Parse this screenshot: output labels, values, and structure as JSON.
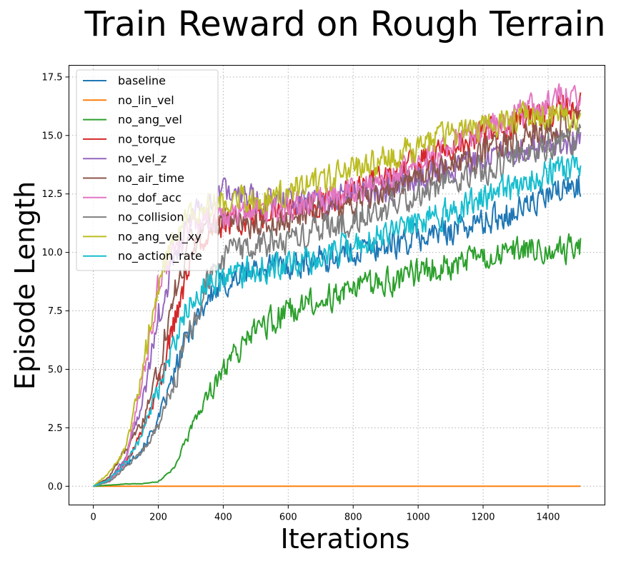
{
  "chart_data": {
    "type": "line",
    "title": "Train Reward on Rough Terrain",
    "xlabel": "Iterations",
    "ylabel": "Episode Length",
    "xlim": [
      -75,
      1575
    ],
    "ylim": [
      -0.8,
      18.0
    ],
    "xticks": [
      0,
      200,
      400,
      600,
      800,
      1000,
      1200,
      1400
    ],
    "yticks": [
      0.0,
      2.5,
      5.0,
      7.5,
      10.0,
      12.5,
      15.0,
      17.5
    ],
    "xtick_labels": [
      "0",
      "200",
      "400",
      "600",
      "800",
      "1000",
      "1200",
      "1400"
    ],
    "ytick_labels": [
      "0.0",
      "2.5",
      "5.0",
      "7.5",
      "10.0",
      "12.5",
      "15.0",
      "17.5"
    ],
    "grid": true,
    "legend_position": "top-left",
    "noisy": true,
    "series": [
      {
        "name": "baseline",
        "color": "#1f77b4",
        "x": [
          0,
          50,
          100,
          150,
          200,
          250,
          300,
          350,
          400,
          450,
          500,
          600,
          700,
          800,
          900,
          1000,
          1100,
          1200,
          1300,
          1400,
          1500
        ],
        "y": [
          0,
          0.3,
          0.9,
          1.6,
          2.8,
          4.8,
          6.8,
          8.0,
          8.6,
          9.0,
          9.3,
          9.5,
          9.7,
          10.0,
          10.3,
          10.6,
          11.0,
          11.3,
          11.8,
          12.4,
          13.0
        ]
      },
      {
        "name": "no_lin_vel",
        "color": "#ff7f0e",
        "x": [
          0,
          1500
        ],
        "y": [
          0,
          0
        ]
      },
      {
        "name": "no_ang_vel",
        "color": "#2ca02c",
        "x": [
          0,
          50,
          100,
          150,
          200,
          250,
          300,
          350,
          400,
          450,
          500,
          550,
          600,
          700,
          800,
          900,
          1000,
          1100,
          1200,
          1300,
          1400,
          1500
        ],
        "y": [
          0,
          0.05,
          0.1,
          0.1,
          0.2,
          0.8,
          2.4,
          3.8,
          4.9,
          5.8,
          6.6,
          7.1,
          7.5,
          8.0,
          8.4,
          8.7,
          9.1,
          9.5,
          9.8,
          10.0,
          10.2,
          10.2
        ]
      },
      {
        "name": "no_torque",
        "color": "#d62728",
        "x": [
          0,
          50,
          100,
          150,
          200,
          250,
          300,
          350,
          400,
          500,
          600,
          700,
          800,
          900,
          1000,
          1100,
          1200,
          1300,
          1400,
          1500
        ],
        "y": [
          0,
          0.3,
          1.0,
          2.3,
          4.2,
          7.0,
          9.8,
          10.9,
          11.3,
          11.6,
          11.8,
          12.1,
          12.6,
          13.2,
          13.9,
          14.5,
          15.0,
          15.5,
          16.0,
          16.3
        ]
      },
      {
        "name": "no_vel_z",
        "color": "#9467bd",
        "x": [
          0,
          50,
          100,
          150,
          200,
          250,
          300,
          350,
          400,
          500,
          600,
          700,
          800,
          900,
          1000,
          1100,
          1200,
          1300,
          1400,
          1500
        ],
        "y": [
          0,
          0.3,
          1.2,
          3.5,
          7.2,
          9.8,
          11.3,
          12.1,
          12.4,
          12.3,
          12.2,
          12.2,
          12.5,
          12.8,
          13.2,
          13.6,
          14.0,
          14.4,
          14.7,
          14.8
        ]
      },
      {
        "name": "no_air_time",
        "color": "#8c564b",
        "x": [
          0,
          50,
          100,
          150,
          200,
          250,
          300,
          350,
          400,
          500,
          600,
          700,
          800,
          900,
          1000,
          1100,
          1200,
          1300,
          1400,
          1500
        ],
        "y": [
          0,
          0.4,
          1.6,
          2.6,
          5.0,
          8.2,
          10.4,
          11.1,
          11.3,
          11.3,
          11.4,
          11.8,
          12.2,
          12.8,
          13.3,
          13.8,
          14.2,
          14.8,
          15.3,
          15.6
        ]
      },
      {
        "name": "no_dof_acc",
        "color": "#e377c2",
        "x": [
          0,
          50,
          100,
          150,
          200,
          250,
          300,
          350,
          400,
          500,
          600,
          700,
          800,
          900,
          1000,
          1100,
          1200,
          1300,
          1400,
          1450,
          1500
        ],
        "y": [
          0,
          0.2,
          1.0,
          4.5,
          8.6,
          10.2,
          11.1,
          11.5,
          11.6,
          11.8,
          12.0,
          12.3,
          12.7,
          13.3,
          14.0,
          14.6,
          15.2,
          15.8,
          16.4,
          16.7,
          16.4
        ]
      },
      {
        "name": "no_collision",
        "color": "#7f7f7f",
        "x": [
          0,
          50,
          100,
          150,
          200,
          250,
          300,
          350,
          400,
          500,
          600,
          700,
          800,
          900,
          1000,
          1100,
          1200,
          1300,
          1400,
          1500
        ],
        "y": [
          0,
          0.2,
          0.8,
          1.5,
          2.6,
          4.5,
          6.8,
          8.8,
          9.8,
          10.3,
          10.6,
          11.0,
          11.4,
          11.9,
          12.5,
          13.0,
          13.5,
          14.1,
          14.6,
          14.9
        ]
      },
      {
        "name": "no_ang_vel_xy",
        "color": "#bcbd22",
        "x": [
          0,
          50,
          100,
          150,
          200,
          250,
          300,
          350,
          400,
          500,
          600,
          700,
          800,
          900,
          1000,
          1100,
          1200,
          1300,
          1400,
          1500
        ],
        "y": [
          0,
          0.6,
          1.6,
          4.8,
          8.8,
          10.5,
          11.5,
          11.9,
          12.1,
          12.3,
          12.6,
          13.0,
          13.5,
          14.0,
          14.5,
          15.0,
          15.4,
          15.7,
          15.9,
          15.8
        ]
      },
      {
        "name": "no_action_rate",
        "color": "#17becf",
        "x": [
          0,
          50,
          100,
          150,
          200,
          250,
          300,
          350,
          400,
          500,
          600,
          700,
          800,
          900,
          1000,
          1100,
          1200,
          1300,
          1400,
          1500
        ],
        "y": [
          0,
          0.3,
          1.0,
          2.2,
          4.1,
          6.4,
          7.9,
          8.6,
          8.9,
          9.3,
          9.6,
          9.9,
          10.3,
          10.8,
          11.3,
          11.8,
          12.3,
          12.8,
          13.4,
          13.8
        ]
      }
    ]
  }
}
